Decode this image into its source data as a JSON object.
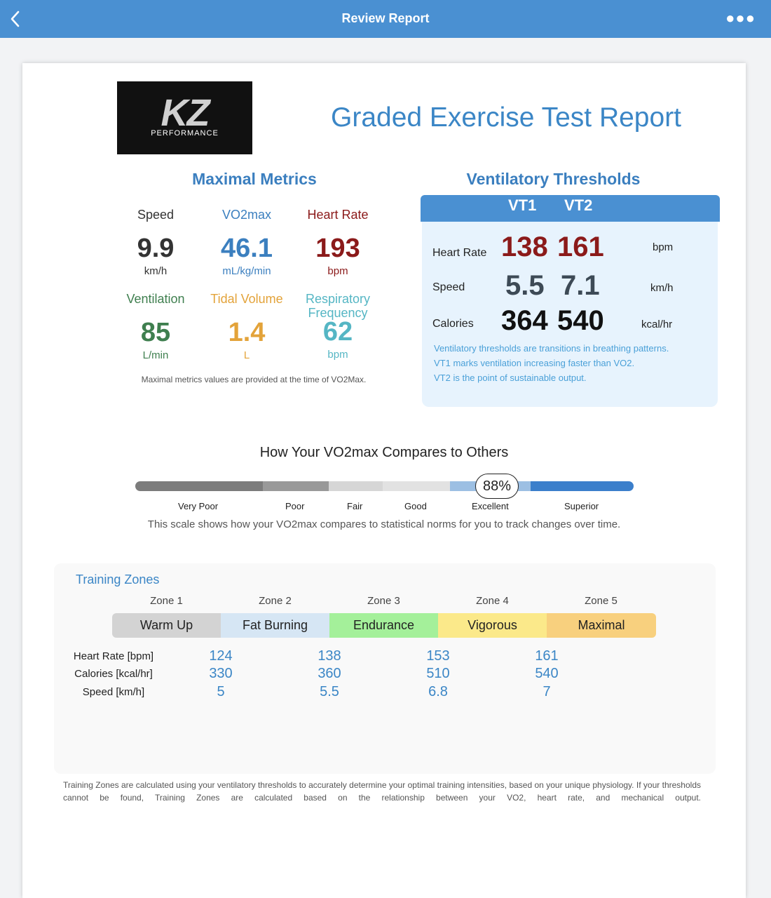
{
  "topbar": {
    "title": "Review Report",
    "more_icon": "more-icon",
    "back_icon": "back-chevron-icon"
  },
  "logo": {
    "main": "KZ",
    "sub": "PERFORMANCE"
  },
  "report_title": "Graded Exercise Test Report",
  "maximal_metrics": {
    "title": "Maximal Metrics",
    "speed": {
      "label": "Speed",
      "value": "9.9",
      "unit": "km/h",
      "color": "#333333"
    },
    "vo2max": {
      "label": "VO2max",
      "value": "46.1",
      "unit": "mL/kg/min",
      "color": "#3b7fbf"
    },
    "heart_rate": {
      "label": "Heart Rate",
      "value": "193",
      "unit": "bpm",
      "color": "#8b1a1a"
    },
    "ventilation": {
      "label": "Ventilation",
      "value": "85",
      "unit": "L/min",
      "color": "#3f7f4f"
    },
    "tidal_volume": {
      "label": "Tidal Volume",
      "value": "1.4",
      "unit": "L",
      "color": "#e3a33a"
    },
    "resp_freq": {
      "label1": "Respiratory",
      "label2": "Frequency",
      "value": "62",
      "unit": "bpm",
      "color": "#55b6c4"
    },
    "note": "Maximal metrics values are provided at the time of VO2Max."
  },
  "ventilatory_thresholds": {
    "title": "Ventilatory Thresholds",
    "vt1": "VT1",
    "vt2": "VT2",
    "rows": [
      {
        "label": "Heart Rate",
        "vt1": "138",
        "vt2": "161",
        "unit": "bpm",
        "color": "#8b1a1a"
      },
      {
        "label": "Speed",
        "vt1": "5.5",
        "vt2": "7.1",
        "unit": "km/h",
        "color": "#3d4a56"
      },
      {
        "label": "Calories",
        "vt1": "364",
        "vt2": "540",
        "unit": "kcal/hr",
        "color": "#111111"
      }
    ],
    "notes": [
      "Ventilatory thresholds are transitions in breathing patterns.",
      "VT1 marks ventilation increasing faster than VO2.",
      "VT2 is the point of sustainable output."
    ]
  },
  "comparison": {
    "title": "How Your VO2max Compares to Others",
    "percentile": "88%",
    "categories": [
      "Very Poor",
      "Poor",
      "Fair",
      "Good",
      "Excellent",
      "Superior"
    ],
    "note": "This scale shows how your VO2max compares to statistical norms for you to track changes over time."
  },
  "training_zones": {
    "title": "Training Zones",
    "zones": [
      {
        "label": "Zone 1",
        "name": "Warm Up",
        "color": "#d3d3d3"
      },
      {
        "label": "Zone 2",
        "name": "Fat Burning",
        "color": "#d6e6f4"
      },
      {
        "label": "Zone 3",
        "name": "Endurance",
        "color": "#a4f09a"
      },
      {
        "label": "Zone 4",
        "name": "Vigorous",
        "color": "#fbe98a"
      },
      {
        "label": "Zone 5",
        "name": "Maximal",
        "color": "#f8d07e"
      }
    ],
    "rows": [
      {
        "label": "Heart Rate [bpm]",
        "values": [
          "124",
          "138",
          "153",
          "161"
        ]
      },
      {
        "label": "Calories [kcal/hr]",
        "values": [
          "330",
          "360",
          "510",
          "540"
        ]
      },
      {
        "label": "Speed [km/h]",
        "values": [
          "5",
          "5.5",
          "6.8",
          "7"
        ]
      }
    ]
  },
  "footer_note": "Training Zones are calculated using your ventilatory thresholds to accurately determine your optimal training intensities, based on your unique physiology. If your thresholds cannot be found, Training Zones are calculated based on the relationship between your VO2, heart rate, and mechanical output."
}
